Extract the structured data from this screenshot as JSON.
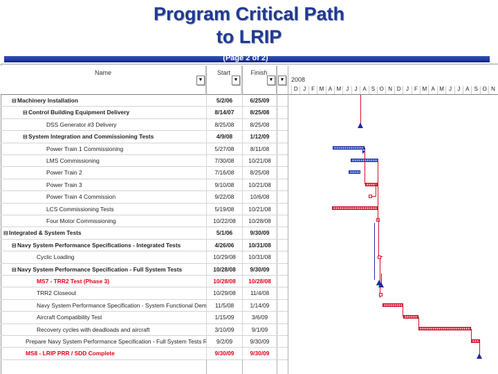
{
  "title_line1": "Program Critical Path",
  "title_line2": "to LRIP",
  "page_label": "(Page 2 of 2)",
  "columns": {
    "name": "Name",
    "start": "Start",
    "finish": "Finish"
  },
  "gantt": {
    "year": "2008",
    "months": [
      "D",
      "J",
      "F",
      "M",
      "A",
      "M",
      "J",
      "J",
      "A",
      "S",
      "O",
      "N",
      "D",
      "J",
      "F",
      "M",
      "A",
      "M",
      "J",
      "J",
      "A",
      "S",
      "O",
      "N"
    ]
  },
  "rows": [
    {
      "name": "Machinery Installation",
      "start": "5/2/06",
      "finish": "6/25/09",
      "style": "bold",
      "toggle": "⊟"
    },
    {
      "name": "Control Building Equipment Delivery",
      "start": "8/14/07",
      "finish": "8/25/08",
      "style": "bold",
      "toggle": "⊟"
    },
    {
      "name": "DSS Generator #3 Delivery",
      "start": "8/25/08",
      "finish": "8/25/08",
      "style": "normal",
      "toggle": ""
    },
    {
      "name": "System Integration and Commissioning Tests",
      "start": "4/9/08",
      "finish": "1/12/09",
      "style": "bold",
      "toggle": "⊟"
    },
    {
      "name": "Power Train 1 Commissioning",
      "start": "5/27/08",
      "finish": "8/11/08",
      "style": "normal",
      "toggle": ""
    },
    {
      "name": "LMS Commissioning",
      "start": "7/30/08",
      "finish": "10/21/08",
      "style": "normal",
      "toggle": ""
    },
    {
      "name": "Power Train 2",
      "start": "7/16/08",
      "finish": "8/25/08",
      "style": "normal",
      "toggle": ""
    },
    {
      "name": "Power Train 3",
      "start": "9/10/08",
      "finish": "10/21/08",
      "style": "normal",
      "toggle": ""
    },
    {
      "name": "Power Train 4 Commission",
      "start": "9/22/08",
      "finish": "10/6/08",
      "style": "normal",
      "toggle": ""
    },
    {
      "name": "LCS Commissioning Tests",
      "start": "5/19/08",
      "finish": "10/21/08",
      "style": "normal",
      "toggle": ""
    },
    {
      "name": "Four Motor Commissioning",
      "start": "10/22/08",
      "finish": "10/28/08",
      "style": "normal",
      "toggle": ""
    },
    {
      "name": "Integrated & System Tests",
      "start": "5/1/06",
      "finish": "9/30/09",
      "style": "bold",
      "toggle": "⊟"
    },
    {
      "name": "Navy System Performance Specifications - Integrated Tests",
      "start": "4/26/06",
      "finish": "10/31/08",
      "style": "bold",
      "toggle": "⊟"
    },
    {
      "name": "Cyclic Loading",
      "start": "10/29/08",
      "finish": "10/31/08",
      "style": "normal",
      "toggle": ""
    },
    {
      "name": "Navy System Performance Specification - Full System Tests",
      "start": "10/28/08",
      "finish": "9/30/09",
      "style": "bold",
      "toggle": "⊟"
    },
    {
      "name": "MS7 - TRR2 Test (Phase 3)",
      "start": "10/28/08",
      "finish": "10/28/08",
      "style": "red",
      "toggle": ""
    },
    {
      "name": "TRR2 Closeout",
      "start": "10/29/08",
      "finish": "11/4/08",
      "style": "normal",
      "toggle": ""
    },
    {
      "name": "Navy System Performance Specification - System Functional Demo",
      "start": "11/5/08",
      "finish": "1/14/09",
      "style": "normal",
      "toggle": ""
    },
    {
      "name": "Aircraft Compatibility Test",
      "start": "1/15/09",
      "finish": "3/6/09",
      "style": "normal",
      "toggle": ""
    },
    {
      "name": "Recovery cycles with deadloads and aircraft",
      "start": "3/10/09",
      "finish": "9/1/09",
      "style": "normal",
      "toggle": ""
    },
    {
      "name": "Prepare Navy System Performance Specification - Full System Tests Report",
      "start": "9/2/09",
      "finish": "9/30/09",
      "style": "normal",
      "toggle": ""
    },
    {
      "name": "MS8 - LRIP PRR / SDD Complete",
      "start": "9/30/09",
      "finish": "9/30/09",
      "style": "red",
      "toggle": ""
    }
  ]
}
